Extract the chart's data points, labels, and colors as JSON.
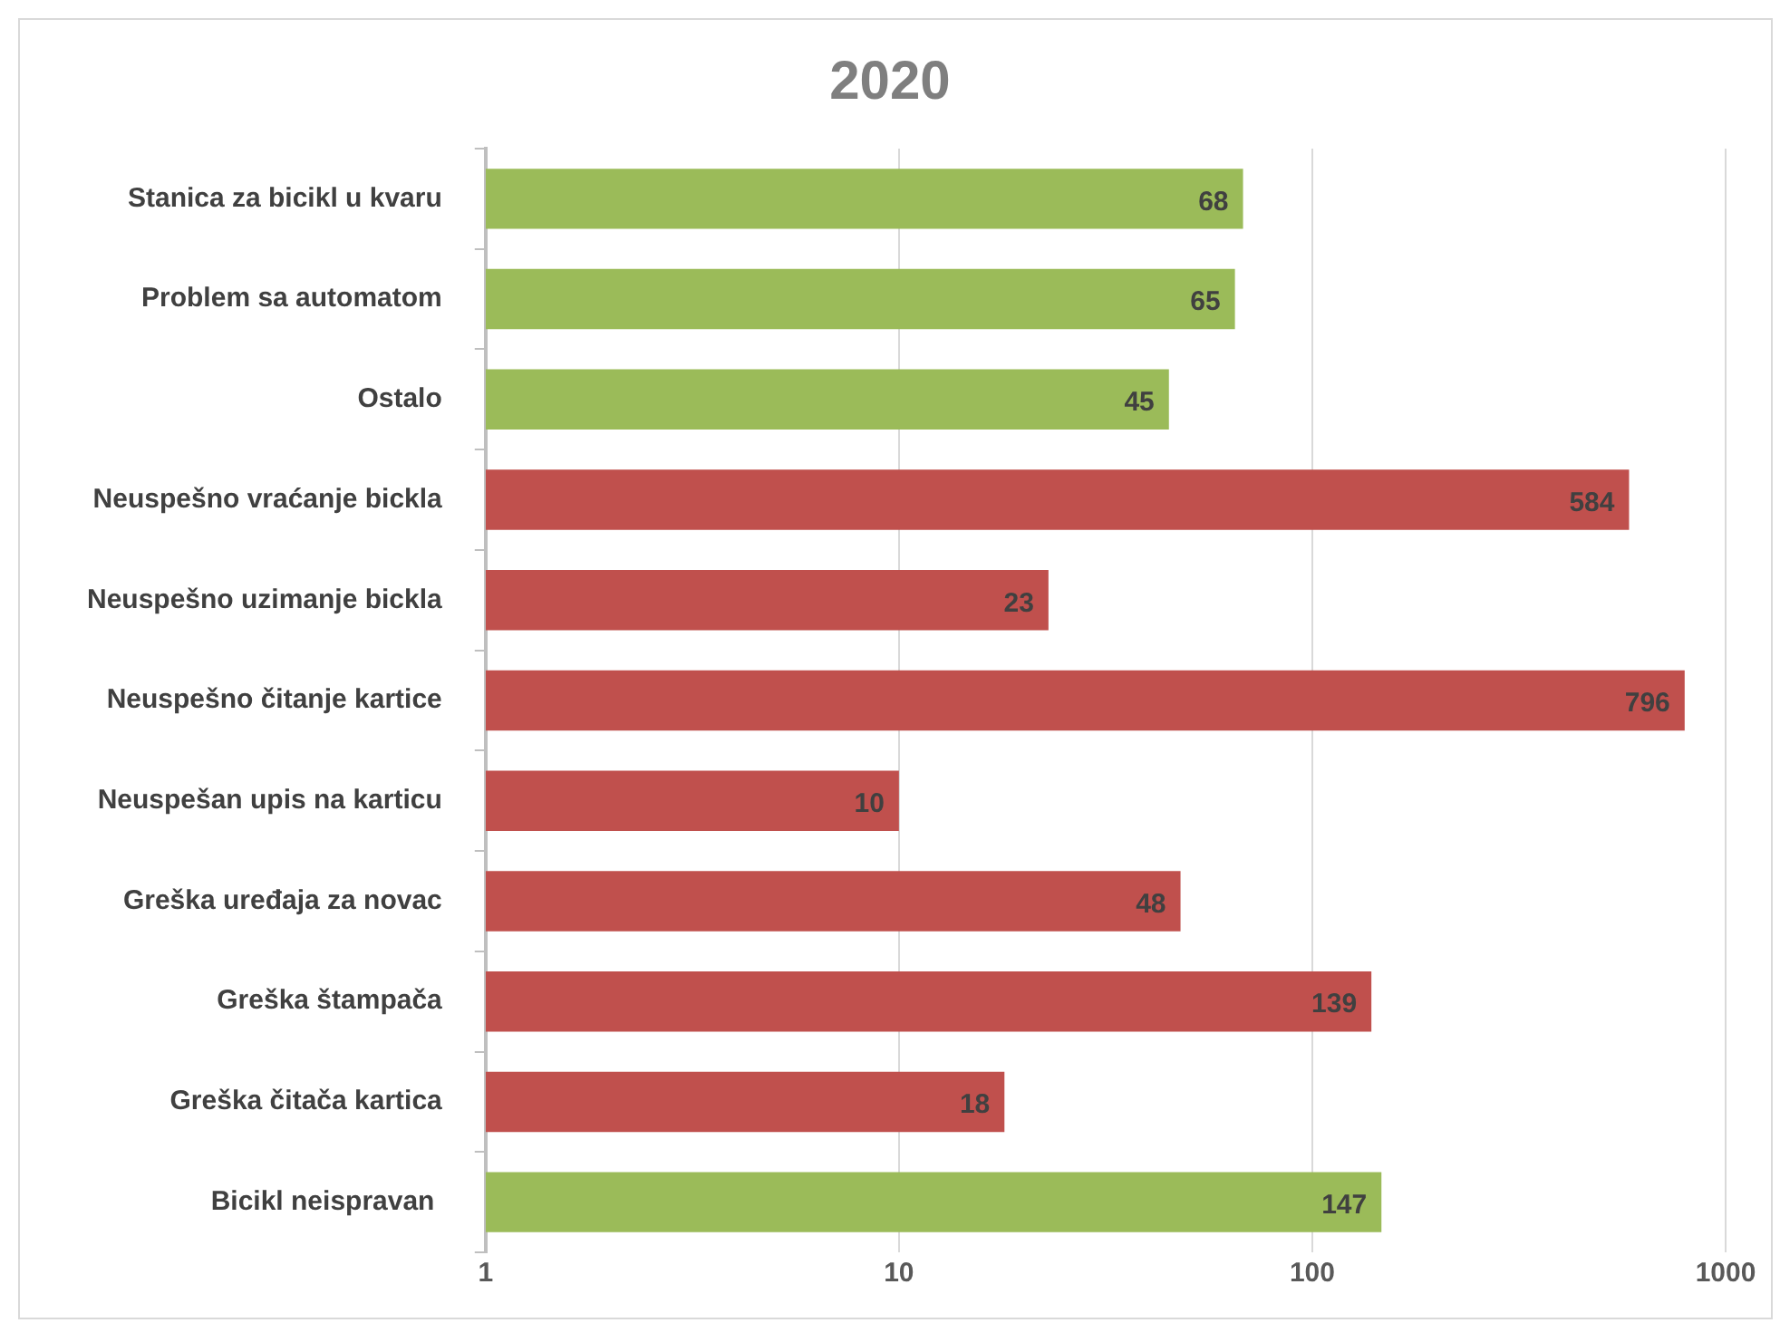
{
  "chart_data": {
    "type": "bar",
    "title": "2020",
    "orientation": "horizontal",
    "log": "x",
    "categories": [
      "Stanica za bicikl u kvaru",
      "Problem sa automatom",
      "Ostalo",
      "Neuspešno vraćanje bickla",
      "Neuspešno uzimanje bickla",
      "Neuspešno čitanje kartice",
      "Neuspešan upis na karticu",
      "Greška uređaja za novac",
      "Greška štampača",
      "Greška čitača kartica",
      "Bicikl neispravan "
    ],
    "values": [
      68,
      65,
      45,
      584,
      23,
      796,
      10,
      48,
      139,
      18,
      147
    ],
    "colors": [
      "#9bbb59",
      "#9bbb59",
      "#9bbb59",
      "#c0504d",
      "#c0504d",
      "#c0504d",
      "#c0504d",
      "#c0504d",
      "#c0504d",
      "#c0504d",
      "#9bbb59"
    ],
    "xlim": [
      1,
      1000
    ],
    "xticks": [
      1,
      10,
      100,
      1000
    ],
    "grid": "x",
    "data_labels": true,
    "legend": false
  }
}
